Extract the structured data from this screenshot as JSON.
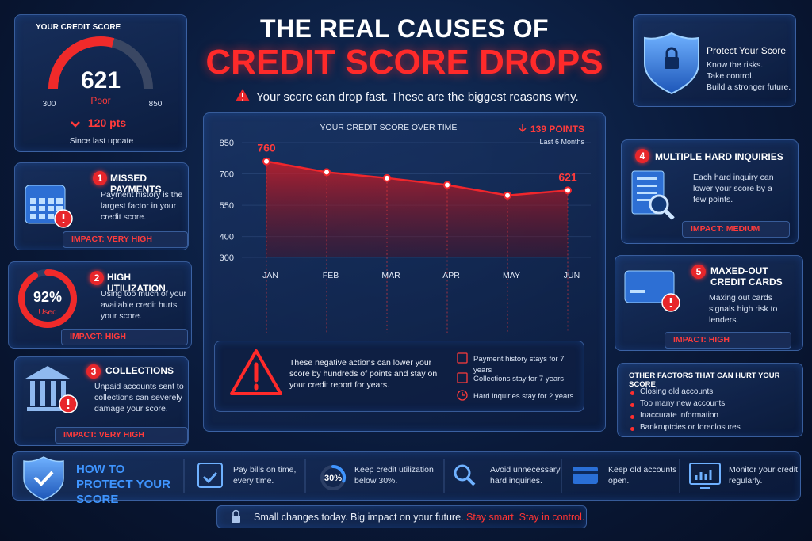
{
  "header": {
    "title_line1": "THE REAL CAUSES OF",
    "title_line2": "CREDIT SCORE DROPS",
    "subtitle": "Your score can drop fast. These are the biggest reasons why."
  },
  "score_card": {
    "label": "YOUR CREDIT SCORE",
    "score": 621,
    "rating": "Poor",
    "min": 300,
    "max": 850,
    "change": "120 pts",
    "change_note": "Since last update"
  },
  "protect_card": {
    "title": "Protect Your Score",
    "lines": [
      "Know the risks.",
      "Take control.",
      "Build a stronger future."
    ]
  },
  "causes": [
    {
      "number": 1,
      "title": "MISSED PAYMENTS",
      "text": "Payment history is the largest factor in your credit score.",
      "impact": "IMPACT: VERY HIGH"
    },
    {
      "number": 2,
      "title": "HIGH UTILIZATION",
      "text": "Using too much of your available credit hurts your score.",
      "impact": "IMPACT: HIGH",
      "utilization": {
        "value": 92,
        "label": "92%"
      },
      "utilization_caption": "Used"
    },
    {
      "number": 3,
      "title": "COLLECTIONS",
      "text": "Unpaid accounts sent to collections can severely damage your score.",
      "impact": "IMPACT: VERY HIGH"
    },
    {
      "number": 4,
      "title": "MULTIPLE HARD INQUIRIES",
      "text": "Each hard inquiry can lower your score by a few points.",
      "impact": "IMPACT: MEDIUM"
    },
    {
      "number": 5,
      "title": "MAXED-OUT CREDIT CARDS",
      "text": "Maxing out cards signals high risk to lenders.",
      "impact": "IMPACT: HIGH"
    }
  ],
  "chart_data": {
    "type": "line",
    "title": "YOUR CREDIT SCORE OVER TIME",
    "change": "139 POINTS",
    "period": "Last 6 Months",
    "categories": [
      "JAN",
      "FEB",
      "MAR",
      "APR",
      "MAY",
      "JUN"
    ],
    "values": [
      760,
      708,
      680,
      647,
      597,
      621
    ],
    "color": "#f0262c",
    "ylim": [
      300,
      850
    ],
    "yticks": [
      850,
      700,
      550,
      400,
      300
    ]
  },
  "chart_note": {
    "text": "These negative actions can lower your score by hundreds of points and stay on your credit report for years.",
    "items": [
      "Payment history stays for 7 years",
      "Collections stay for 7 years",
      "Hard inquiries stay for 2 years"
    ]
  },
  "other_factors": {
    "title": "OTHER FACTORS THAT CAN HURT YOUR SCORE",
    "items": [
      "Closing old accounts",
      "Too many new accounts",
      "Inaccurate information",
      "Bankruptcies or foreclosures"
    ]
  },
  "tips": {
    "title": "HOW TO PROTECT YOUR SCORE",
    "utilization_target": {
      "value": 30,
      "label": "30%"
    },
    "items": [
      "Pay bills on time, every time.",
      "Keep credit utilization below 30%.",
      "Avoid unnecessary hard inquiries.",
      "Keep old accounts open.",
      "Monitor your credit regularly."
    ]
  },
  "footer": {
    "text": "Small changes today. Big impact on your future.",
    "highlight": "Stay smart. Stay in control."
  }
}
